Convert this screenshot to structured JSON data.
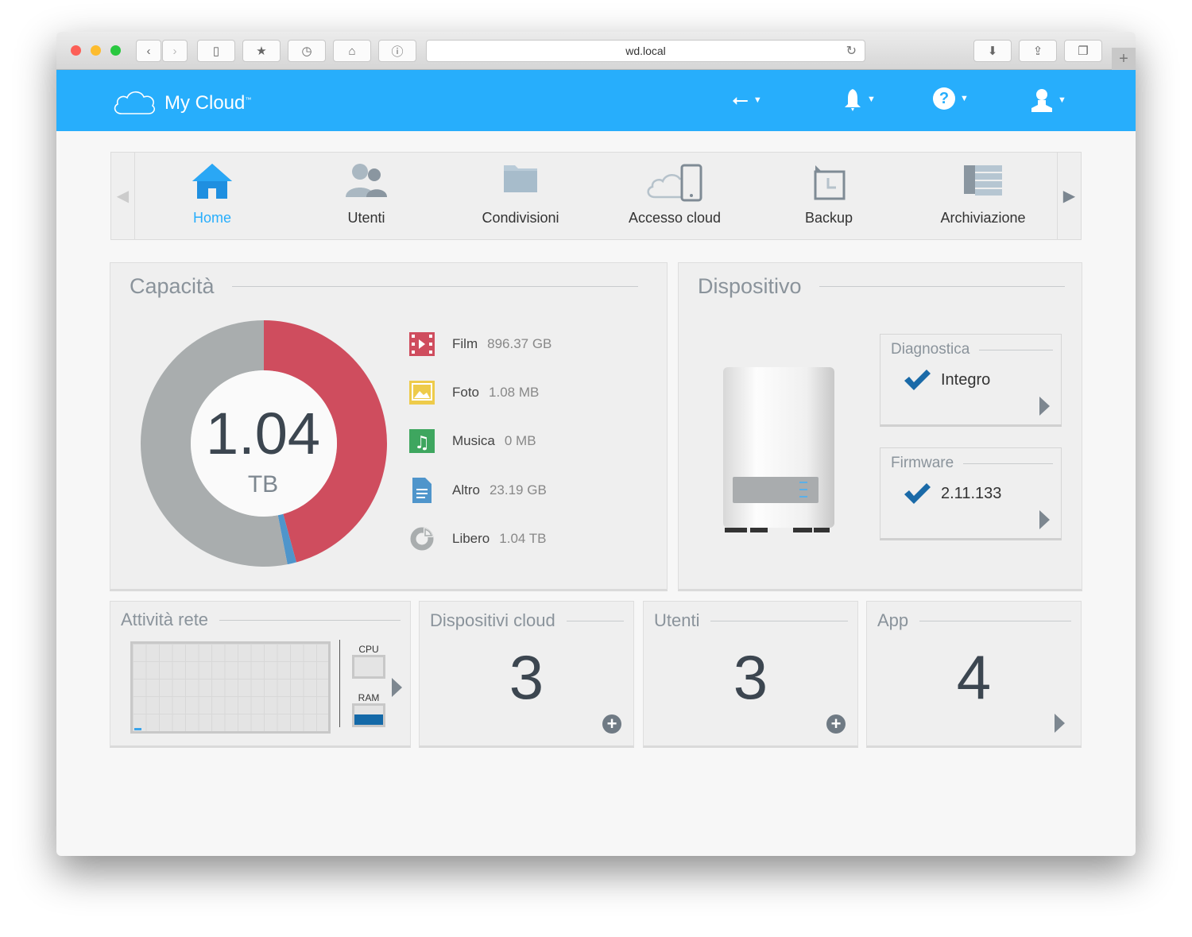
{
  "browser": {
    "url": "wd.local"
  },
  "header": {
    "brand": "My Cloud",
    "trademark": "™",
    "icons": [
      "usb-icon",
      "bell-icon",
      "help-icon",
      "user-icon"
    ]
  },
  "nav": {
    "items": [
      {
        "label": "Home",
        "active": true
      },
      {
        "label": "Utenti"
      },
      {
        "label": "Condivisioni"
      },
      {
        "label": "Accesso cloud"
      },
      {
        "label": "Backup"
      },
      {
        "label": "Archiviazione"
      }
    ]
  },
  "capacity": {
    "title": "Capacità",
    "total_value": "1.04",
    "total_unit": "TB",
    "items": [
      {
        "name": "Film",
        "value": "896.37 GB",
        "color": "#cf4d5e"
      },
      {
        "name": "Foto",
        "value": "1.08 MB",
        "color": "#eecb4a"
      },
      {
        "name": "Musica",
        "value": "0 MB",
        "color": "#3ea65f"
      },
      {
        "name": "Altro",
        "value": "23.19 GB",
        "color": "#4f95cb"
      },
      {
        "name": "Libero",
        "value": "1.04 TB",
        "color": "#a9adae"
      }
    ]
  },
  "chart_data": {
    "type": "pie",
    "categories": [
      "Film",
      "Foto",
      "Musica",
      "Altro",
      "Libero"
    ],
    "values": [
      896.37,
      0.00108,
      0,
      23.19,
      1040
    ],
    "units": "GB"
  },
  "device": {
    "title": "Dispositivo",
    "diagnostics": {
      "title": "Diagnostica",
      "value": "Integro"
    },
    "firmware": {
      "title": "Firmware",
      "value": "2.11.133"
    }
  },
  "network": {
    "title": "Attività rete",
    "cpu_label": "CPU",
    "ram_label": "RAM",
    "cpu_fraction": 0,
    "ram_fraction": 0.55
  },
  "tiles": [
    {
      "title": "Dispositivi cloud",
      "count": "3"
    },
    {
      "title": "Utenti",
      "count": "3"
    },
    {
      "title": "App",
      "count": "4"
    }
  ],
  "colors": {
    "accent": "#27aefc",
    "check": "#1a6aa8"
  }
}
